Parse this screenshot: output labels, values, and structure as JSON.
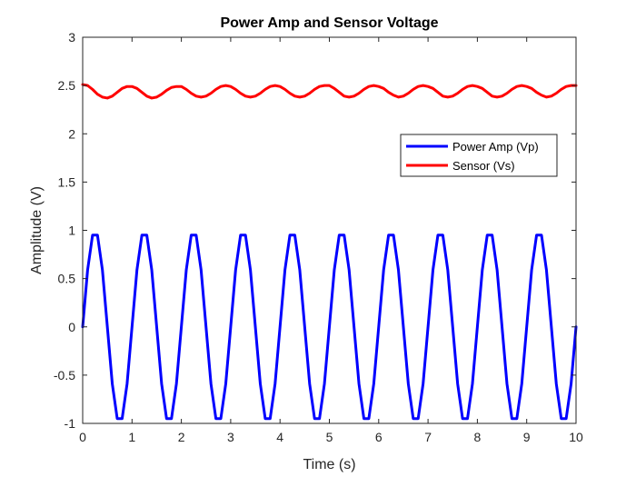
{
  "chart_data": {
    "type": "line",
    "title": "Power Amp and Sensor Voltage",
    "xlabel": "Time (s)",
    "ylabel": "Amplitude (V)",
    "xlim": [
      0,
      10
    ],
    "ylim": [
      -1,
      3
    ],
    "xticks": [
      0,
      1,
      2,
      3,
      4,
      5,
      6,
      7,
      8,
      9,
      10
    ],
    "yticks": [
      -1,
      -0.5,
      0,
      0.5,
      1,
      1.5,
      2,
      2.5,
      3
    ],
    "ytick_labels": [
      "-1",
      "-0.5",
      "0",
      "0.5",
      "1",
      "1.5",
      "2",
      "2.5",
      "3"
    ],
    "grid": false,
    "legend_position": "right",
    "series": [
      {
        "name": "Power Amp (Vp)",
        "color": "#0000ff",
        "x": [
          0,
          0.1,
          0.2,
          0.3,
          0.4,
          0.5,
          0.6,
          0.7,
          0.8,
          0.9,
          1.0,
          1.1,
          1.2,
          1.3,
          1.4,
          1.5,
          1.6,
          1.7,
          1.8,
          1.9,
          2.0,
          2.1,
          2.2,
          2.3,
          2.4,
          2.5,
          2.6,
          2.7,
          2.8,
          2.9,
          3.0,
          3.1,
          3.2,
          3.3,
          3.4,
          3.5,
          3.6,
          3.7,
          3.8,
          3.9,
          4.0,
          4.1,
          4.2,
          4.3,
          4.4,
          4.5,
          4.6,
          4.7,
          4.8,
          4.9,
          5.0,
          5.1,
          5.2,
          5.3,
          5.4,
          5.5,
          5.6,
          5.7,
          5.8,
          5.9,
          6.0,
          6.1,
          6.2,
          6.3,
          6.4,
          6.5,
          6.6,
          6.7,
          6.8,
          6.9,
          7.0,
          7.1,
          7.2,
          7.3,
          7.4,
          7.5,
          7.6,
          7.7,
          7.8,
          7.9,
          8.0,
          8.1,
          8.2,
          8.3,
          8.4,
          8.5,
          8.6,
          8.7,
          8.8,
          8.9,
          9.0,
          9.1,
          9.2,
          9.3,
          9.4,
          9.5,
          9.6,
          9.7,
          9.8,
          9.9,
          10.0
        ],
        "y": [
          0,
          0.59,
          0.95,
          0.95,
          0.59,
          0,
          -0.59,
          -0.95,
          -0.95,
          -0.59,
          0,
          0.59,
          0.95,
          0.95,
          0.59,
          0,
          -0.59,
          -0.95,
          -0.95,
          -0.59,
          0,
          0.59,
          0.95,
          0.95,
          0.59,
          0,
          -0.59,
          -0.95,
          -0.95,
          -0.59,
          0,
          0.59,
          0.95,
          0.95,
          0.59,
          0,
          -0.59,
          -0.95,
          -0.95,
          -0.59,
          0,
          0.59,
          0.95,
          0.95,
          0.59,
          0,
          -0.59,
          -0.95,
          -0.95,
          -0.59,
          0,
          0.59,
          0.95,
          0.95,
          0.59,
          0,
          -0.59,
          -0.95,
          -0.95,
          -0.59,
          0,
          0.59,
          0.95,
          0.95,
          0.59,
          0,
          -0.59,
          -0.95,
          -0.95,
          -0.59,
          0,
          0.59,
          0.95,
          0.95,
          0.59,
          0,
          -0.59,
          -0.95,
          -0.95,
          -0.59,
          0,
          0.59,
          0.95,
          0.95,
          0.59,
          0,
          -0.59,
          -0.95,
          -0.95,
          -0.59,
          0,
          0.59,
          0.95,
          0.95,
          0.59,
          0,
          -0.59,
          -0.95,
          -0.95,
          -0.59,
          0
        ]
      },
      {
        "name": "Sensor (Vs)",
        "color": "#ff0000",
        "x": [
          0,
          0.1,
          0.2,
          0.3,
          0.4,
          0.5,
          0.6,
          0.7,
          0.8,
          0.9,
          1.0,
          1.1,
          1.2,
          1.3,
          1.4,
          1.5,
          1.6,
          1.7,
          1.8,
          1.9,
          2.0,
          2.1,
          2.2,
          2.3,
          2.4,
          2.5,
          2.6,
          2.7,
          2.8,
          2.9,
          3.0,
          3.1,
          3.2,
          3.3,
          3.4,
          3.5,
          3.6,
          3.7,
          3.8,
          3.9,
          4.0,
          4.1,
          4.2,
          4.3,
          4.4,
          4.5,
          4.6,
          4.7,
          4.8,
          4.9,
          5.0,
          5.1,
          5.2,
          5.3,
          5.4,
          5.5,
          5.6,
          5.7,
          5.8,
          5.9,
          6.0,
          6.1,
          6.2,
          6.3,
          6.4,
          6.5,
          6.6,
          6.7,
          6.8,
          6.9,
          7.0,
          7.1,
          7.2,
          7.3,
          7.4,
          7.5,
          7.6,
          7.7,
          7.8,
          7.9,
          8.0,
          8.1,
          8.2,
          8.3,
          8.4,
          8.5,
          8.6,
          8.7,
          8.8,
          8.9,
          9.0,
          9.1,
          9.2,
          9.3,
          9.4,
          9.5,
          9.6,
          9.7,
          9.8,
          9.9,
          10.0
        ],
        "y": [
          2.51,
          2.5,
          2.46,
          2.41,
          2.38,
          2.37,
          2.39,
          2.43,
          2.47,
          2.49,
          2.49,
          2.47,
          2.43,
          2.39,
          2.37,
          2.38,
          2.41,
          2.45,
          2.48,
          2.49,
          2.49,
          2.46,
          2.42,
          2.39,
          2.38,
          2.39,
          2.42,
          2.46,
          2.49,
          2.5,
          2.49,
          2.46,
          2.42,
          2.39,
          2.38,
          2.39,
          2.42,
          2.46,
          2.49,
          2.5,
          2.49,
          2.46,
          2.42,
          2.39,
          2.38,
          2.39,
          2.42,
          2.46,
          2.49,
          2.5,
          2.5,
          2.47,
          2.43,
          2.39,
          2.38,
          2.39,
          2.42,
          2.46,
          2.49,
          2.5,
          2.49,
          2.47,
          2.43,
          2.4,
          2.38,
          2.39,
          2.42,
          2.46,
          2.49,
          2.5,
          2.49,
          2.47,
          2.43,
          2.39,
          2.38,
          2.39,
          2.42,
          2.46,
          2.49,
          2.5,
          2.49,
          2.47,
          2.43,
          2.39,
          2.38,
          2.39,
          2.42,
          2.46,
          2.49,
          2.5,
          2.49,
          2.47,
          2.43,
          2.4,
          2.38,
          2.39,
          2.42,
          2.46,
          2.49,
          2.5,
          2.5
        ]
      }
    ]
  }
}
